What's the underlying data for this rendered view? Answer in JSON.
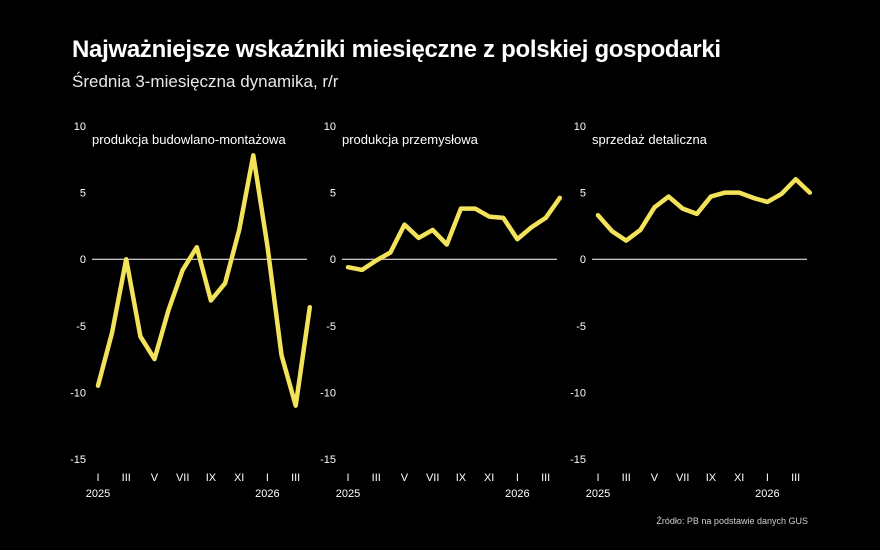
{
  "header": {
    "title": "Najważniejsze wskaźniki miesięczne z polskiej gospodarki",
    "subtitle": "Średnia 3-miesięczna dynamika, r/r"
  },
  "footer": {
    "source": "Źródło: PB na podstawie danych GUS"
  },
  "colors": {
    "line": "#f2e35a",
    "background": "#000000",
    "text": "#ffffff"
  },
  "chart_data": [
    {
      "type": "line",
      "title": "produkcja budowlano-montażowa",
      "ylim": [
        -15,
        10
      ],
      "yticks": [
        "10",
        "5",
        "0",
        "-5",
        "-10",
        "-15"
      ],
      "xticks": [
        "I",
        "III",
        "V",
        "VII",
        "IX",
        "XI",
        "I",
        "III"
      ],
      "year_labels": [
        "2025",
        "2026"
      ],
      "grid": "zero line",
      "values": [
        -9.5,
        -5.5,
        0.0,
        -5.8,
        -7.5,
        -3.8,
        -0.8,
        0.9,
        -3.1,
        -1.8,
        2.2,
        7.8,
        1.0,
        -7.2,
        -11.0,
        -3.6
      ]
    },
    {
      "type": "line",
      "title": "produkcja przemysłowa",
      "ylim": [
        -15,
        10
      ],
      "yticks": [
        "10",
        "5",
        "0",
        "-5",
        "-10",
        "-15"
      ],
      "xticks": [
        "I",
        "III",
        "V",
        "VII",
        "IX",
        "XI",
        "I",
        "III"
      ],
      "year_labels": [
        "2025",
        "2026"
      ],
      "grid": "zero line",
      "values": [
        -0.6,
        -0.8,
        -0.1,
        0.5,
        2.6,
        1.6,
        2.2,
        1.1,
        3.8,
        3.8,
        3.2,
        3.1,
        1.5,
        2.4,
        3.1,
        4.6
      ]
    },
    {
      "type": "line",
      "title": "sprzedaż detaliczna",
      "ylim": [
        -15,
        10
      ],
      "yticks": [
        "10",
        "5",
        "0",
        "-5",
        "-10",
        "-15"
      ],
      "xticks": [
        "I",
        "III",
        "V",
        "VII",
        "IX",
        "XI",
        "I",
        "III"
      ],
      "year_labels": [
        "2025",
        "2026"
      ],
      "grid": "zero line",
      "values": [
        3.3,
        2.1,
        1.4,
        2.2,
        3.9,
        4.7,
        3.8,
        3.4,
        4.7,
        5.0,
        5.0,
        4.6,
        4.3,
        4.9,
        6.0,
        5.0
      ]
    }
  ]
}
